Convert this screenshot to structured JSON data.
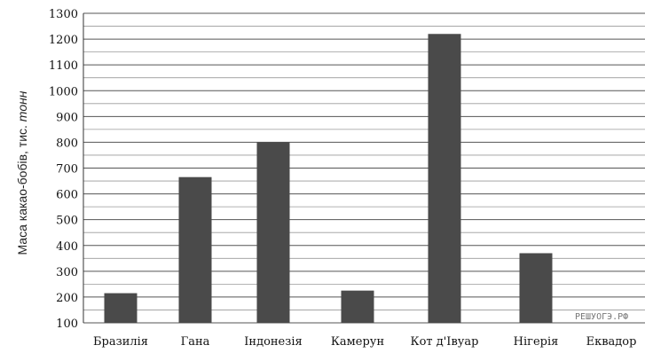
{
  "chart_data": {
    "type": "bar",
    "categories": [
      "Бразилія",
      "Гана",
      "Індонезія",
      "Камерун",
      "Кот д'Івуар",
      "Нігерія",
      "Еквадор"
    ],
    "values": [
      215,
      665,
      800,
      225,
      1220,
      370,
      75
    ],
    "ylabel_prefix": "Маса какао-бобів, тис. ",
    "ylabel_unit": "тонн",
    "ylim": [
      100,
      1300
    ],
    "yticks": [
      100,
      200,
      300,
      400,
      500,
      600,
      700,
      800,
      900,
      1000,
      1100,
      1200,
      1300
    ],
    "grid": true,
    "bar_color": "#4a4a4a",
    "grid_color": "#555555",
    "watermark": "РЕШУОГЭ.РФ"
  }
}
